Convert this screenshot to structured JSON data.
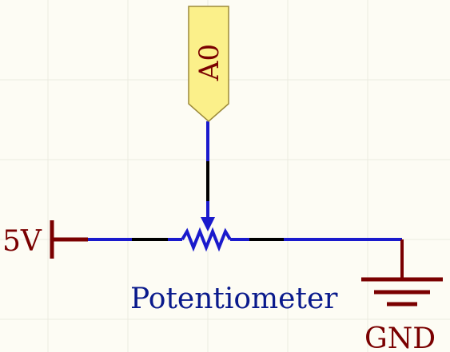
{
  "schematic": {
    "net_label": "A0",
    "power_label": "5V",
    "ground_label": "GND",
    "component_label": "Potentiometer"
  },
  "colors": {
    "background": "#fdfcf4",
    "grid": "#ecebe0",
    "wire": "#1a1acc",
    "wire_segment": "#000000",
    "power_symbol": "#7a0000",
    "net_label_fill": "#fbf08a",
    "net_label_stroke": "#9c8a3a",
    "component_label": "#0a1a8c"
  }
}
